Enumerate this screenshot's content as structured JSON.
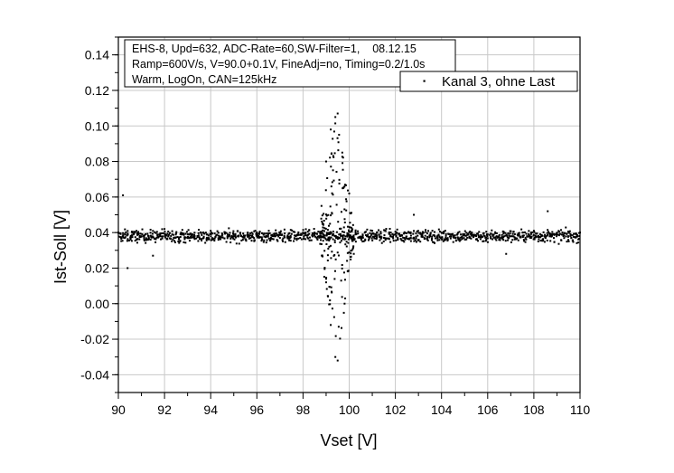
{
  "chart_data": {
    "type": "scatter",
    "title": "",
    "xlabel": "Vset [V]",
    "ylabel": "Ist-Soll [V]",
    "xlim": [
      90,
      110
    ],
    "ylim": [
      -0.05,
      0.15
    ],
    "x_ticks": [
      90,
      92,
      94,
      96,
      98,
      100,
      102,
      104,
      106,
      108,
      110
    ],
    "y_ticks": [
      -0.04,
      -0.02,
      0.0,
      0.02,
      0.04,
      0.06,
      0.08,
      0.1,
      0.12,
      0.14
    ],
    "x_tick_labels": [
      "90",
      "92",
      "94",
      "96",
      "98",
      "100",
      "102",
      "104",
      "106",
      "108",
      "110"
    ],
    "y_tick_labels": [
      "-0.04",
      "-0.02",
      "0.00",
      "0.02",
      "0.04",
      "0.06",
      "0.08",
      "0.10",
      "0.12",
      "0.14"
    ],
    "grid": true,
    "legend_position": "top-right",
    "info_box": [
      "EHS-8, Upd=632, ADC-Rate=60,SW-Filter=1,    08.12.15",
      "Ramp=600V/s, V=90.0+0.1V, FineAdj=no, Timing=0.2/1.0s",
      "Warm, LogOn, CAN=125kHz"
    ],
    "series": [
      {
        "name": "Kanal 3, ohne Last",
        "color": "#000000",
        "marker": "dot",
        "description_points": [
          {
            "x": 90.0,
            "y": 0.04
          },
          {
            "x": 90.2,
            "y": 0.061
          },
          {
            "x": 90.4,
            "y": 0.02
          },
          {
            "x": 90.8,
            "y": 0.036
          },
          {
            "x": 91.5,
            "y": 0.027
          },
          {
            "x": 92.0,
            "y": 0.042
          },
          {
            "x": 93.0,
            "y": 0.037
          },
          {
            "x": 94.0,
            "y": 0.041
          },
          {
            "x": 95.0,
            "y": 0.038
          },
          {
            "x": 96.0,
            "y": 0.04
          },
          {
            "x": 97.0,
            "y": 0.037
          },
          {
            "x": 98.0,
            "y": 0.04
          },
          {
            "x": 98.8,
            "y": 0.055
          },
          {
            "x": 99.0,
            "y": 0.08
          },
          {
            "x": 99.2,
            "y": 0.098
          },
          {
            "x": 99.4,
            "y": 0.105
          },
          {
            "x": 99.5,
            "y": 0.107
          },
          {
            "x": 99.7,
            "y": 0.085
          },
          {
            "x": 100.0,
            "y": 0.062
          },
          {
            "x": 99.0,
            "y": 0.012
          },
          {
            "x": 99.2,
            "y": -0.012
          },
          {
            "x": 99.4,
            "y": -0.03
          },
          {
            "x": 99.5,
            "y": -0.032
          },
          {
            "x": 99.8,
            "y": 0.0
          },
          {
            "x": 100.2,
            "y": 0.028
          },
          {
            "x": 101.0,
            "y": 0.041
          },
          {
            "x": 102.0,
            "y": 0.039
          },
          {
            "x": 102.8,
            "y": 0.05
          },
          {
            "x": 104.0,
            "y": 0.04
          },
          {
            "x": 106.0,
            "y": 0.039
          },
          {
            "x": 106.8,
            "y": 0.028
          },
          {
            "x": 108.0,
            "y": 0.041
          },
          {
            "x": 108.6,
            "y": 0.052
          },
          {
            "x": 110.0,
            "y": 0.04
          }
        ],
        "baseline_mean": 0.038,
        "baseline_spread": 0.006
      }
    ]
  }
}
